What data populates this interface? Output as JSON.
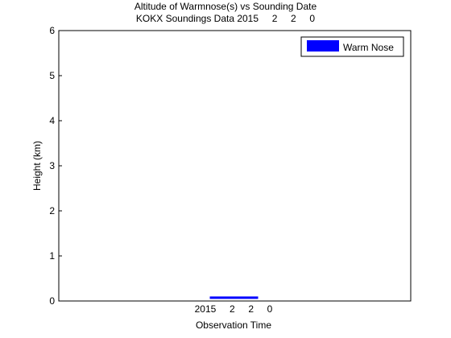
{
  "chart_data": {
    "type": "bar",
    "title": "Altitude of Warmnose(s) vs Sounding Date",
    "subtitle": "KOKX Soundings Data 2015     2     2     0",
    "xlabel": "Observation Time",
    "ylabel": "Height (km)",
    "ylim": [
      0,
      6
    ],
    "yticks": [
      "0",
      "1",
      "2",
      "3",
      "4",
      "5",
      "6"
    ],
    "xtick_label": "2015     2     2     0",
    "grid": false,
    "legend_position": "top-right",
    "series": [
      {
        "name": "Warm Nose",
        "color": "#0000ff",
        "bars": [
          {
            "bottom": 0.05,
            "top": 0.1
          }
        ]
      }
    ]
  }
}
